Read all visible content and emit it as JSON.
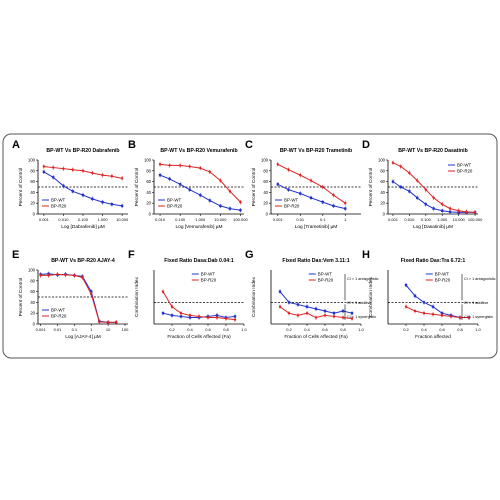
{
  "colors": {
    "wt": "#2233cc",
    "r20": "#dd2222",
    "ref": "#000000"
  },
  "ci_labels": {
    "antagonistic": "CI > 1 antagonistic",
    "additive": "CI = 1 additive",
    "synergistic": "CI < 1 synergistic"
  },
  "chart_data": [
    {
      "panel": "A",
      "type": "scatter",
      "title": "BP-WT Vs BP-R20 Dabrafenib",
      "xlabel": "Log [Dabrafenib] µM",
      "ylabel": "Percent of Control",
      "xscale": "log",
      "xlim": [
        0.0005,
        20
      ],
      "ylim": [
        0,
        100
      ],
      "xticks": [
        0.001,
        0.01,
        0.1,
        1,
        10
      ],
      "xticklabels": [
        "0.001",
        "0.010",
        "0.100",
        "1.000",
        "10.000"
      ],
      "yticks": [
        0,
        20,
        40,
        60,
        80,
        100
      ],
      "refline": 50,
      "legend": "bottom-left",
      "series": [
        {
          "name": "BP-WT",
          "x": [
            0.001,
            0.003,
            0.01,
            0.03,
            0.1,
            0.3,
            1,
            3,
            10
          ],
          "y": [
            78,
            68,
            52,
            42,
            35,
            28,
            22,
            18,
            15
          ]
        },
        {
          "name": "BP-R20",
          "x": [
            0.001,
            0.003,
            0.01,
            0.03,
            0.1,
            0.3,
            1,
            3,
            10
          ],
          "y": [
            88,
            86,
            84,
            82,
            80,
            76,
            72,
            70,
            66
          ]
        }
      ]
    },
    {
      "panel": "B",
      "type": "scatter",
      "title": "BP-WT Vs BP-R20 Vemurafenib",
      "xlabel": "Log [Vemurafenib] µM",
      "ylabel": "Percent of Control",
      "xscale": "log",
      "xlim": [
        0.005,
        150
      ],
      "ylim": [
        0,
        100
      ],
      "xticks": [
        0.01,
        0.1,
        1,
        10,
        100
      ],
      "xticklabels": [
        "0.010",
        "0.100",
        "1.000",
        "10.000",
        "100.000"
      ],
      "yticks": [
        0,
        20,
        40,
        60,
        80,
        100
      ],
      "refline": 50,
      "legend": "bottom-left",
      "series": [
        {
          "name": "BP-WT",
          "x": [
            0.01,
            0.03,
            0.1,
            0.3,
            1,
            3,
            10,
            30,
            100
          ],
          "y": [
            72,
            65,
            55,
            45,
            35,
            25,
            15,
            10,
            7
          ]
        },
        {
          "name": "BP-R20",
          "x": [
            0.01,
            0.03,
            0.1,
            0.3,
            1,
            3,
            10,
            30,
            100
          ],
          "y": [
            92,
            90,
            90,
            88,
            85,
            78,
            62,
            42,
            22
          ]
        }
      ]
    },
    {
      "panel": "C",
      "type": "scatter",
      "title": "BP-WT Vs BP-R20 Trametinib",
      "xlabel": "Log [Trametinib] µM",
      "ylabel": "Percent of Control",
      "xscale": "log",
      "xlim": [
        0.0005,
        5
      ],
      "ylim": [
        0,
        100
      ],
      "xticks": [
        0.001,
        0.01,
        0.1,
        1
      ],
      "xticklabels": [
        "0.001",
        "0.01",
        "0.1",
        "1"
      ],
      "yticks": [
        0,
        20,
        40,
        60,
        80,
        100
      ],
      "refline": 50,
      "legend": "bottom-left",
      "series": [
        {
          "name": "BP-WT",
          "x": [
            0.001,
            0.003,
            0.01,
            0.03,
            0.1,
            0.3,
            1
          ],
          "y": [
            55,
            45,
            38,
            30,
            22,
            15,
            10
          ]
        },
        {
          "name": "BP-R20",
          "x": [
            0.001,
            0.003,
            0.01,
            0.03,
            0.1,
            0.3,
            1
          ],
          "y": [
            92,
            82,
            72,
            62,
            50,
            35,
            20
          ]
        }
      ]
    },
    {
      "panel": "D",
      "type": "scatter",
      "title": "BP-WT Vs BP-R20 Dasatinib",
      "xlabel": "Log [Dasatinib] µM",
      "ylabel": "Percent of Control",
      "xscale": "log",
      "xlim": [
        0.0005,
        150
      ],
      "ylim": [
        0,
        100
      ],
      "xticks": [
        0.001,
        0.01,
        0.1,
        1,
        10,
        100
      ],
      "xticklabels": [
        "0.001",
        "0.010",
        "0.100",
        "1.000",
        "10.000",
        "100.000"
      ],
      "yticks": [
        0,
        20,
        40,
        60,
        80,
        100
      ],
      "refline": 50,
      "legend": "top-right",
      "series": [
        {
          "name": "BP-WT",
          "x": [
            0.001,
            0.003,
            0.01,
            0.03,
            0.1,
            0.3,
            1,
            3,
            10,
            30,
            100
          ],
          "y": [
            60,
            50,
            42,
            30,
            18,
            10,
            6,
            4,
            3,
            3,
            3
          ]
        },
        {
          "name": "BP-R20",
          "x": [
            0.001,
            0.003,
            0.01,
            0.03,
            0.1,
            0.3,
            1,
            3,
            10,
            30,
            100
          ],
          "y": [
            95,
            88,
            76,
            62,
            45,
            30,
            18,
            10,
            6,
            4,
            3
          ]
        }
      ]
    },
    {
      "panel": "E",
      "type": "scatter",
      "title": "BP-WT Vs BP-R20 AJAY-4",
      "xlabel": "Log [AJAY-4] µM",
      "ylabel": "Percent of Control",
      "xscale": "log",
      "xlim": [
        0.0007,
        150
      ],
      "ylim": [
        0,
        100
      ],
      "xticks": [
        0.001,
        0.01,
        0.1,
        1,
        10,
        100
      ],
      "xticklabels": [
        "0.001",
        "0.01",
        "0.1",
        "1",
        "10",
        "100"
      ],
      "yticks": [
        0,
        20,
        40,
        60,
        80,
        100
      ],
      "refline": 50,
      "legend": "bottom-left",
      "series": [
        {
          "name": "BP-WT",
          "x": [
            0.001,
            0.003,
            0.01,
            0.03,
            0.1,
            0.3,
            1,
            3,
            10,
            30
          ],
          "y": [
            92,
            93,
            91,
            92,
            90,
            88,
            60,
            5,
            3,
            3
          ]
        },
        {
          "name": "BP-R20",
          "x": [
            0.001,
            0.003,
            0.01,
            0.03,
            0.1,
            0.3,
            1,
            3,
            10,
            30
          ],
          "y": [
            90,
            90,
            92,
            91,
            90,
            86,
            55,
            4,
            3,
            3
          ]
        }
      ]
    },
    {
      "panel": "F",
      "type": "scatter",
      "title": "Fixed Ratio Dasa:Dab 0.04:1",
      "xlabel": "Fraction of Cells Affected (Fa)",
      "ylabel": "Combination Index",
      "xlim": [
        0,
        1
      ],
      "ylim": [
        0,
        2.5
      ],
      "xticks": [
        0.2,
        0.4,
        0.6,
        0.8,
        1.0
      ],
      "xticklabels": [
        "0.2",
        "0.4",
        "0.6",
        "0.8",
        "1.0"
      ],
      "refline": 1,
      "legend": "top-right",
      "series": [
        {
          "name": "BP-WT",
          "x": [
            0.1,
            0.2,
            0.3,
            0.4,
            0.5,
            0.6,
            0.7,
            0.8,
            0.9
          ],
          "y": [
            0.5,
            0.4,
            0.35,
            0.3,
            0.3,
            0.35,
            0.4,
            0.3,
            0.35
          ]
        },
        {
          "name": "BP-R20",
          "x": [
            0.1,
            0.2,
            0.3,
            0.4,
            0.5,
            0.6,
            0.7,
            0.8,
            0.9
          ],
          "y": [
            1.5,
            0.8,
            0.5,
            0.4,
            0.35,
            0.3,
            0.3,
            0.25,
            0.2
          ]
        }
      ]
    },
    {
      "panel": "G",
      "type": "scatter",
      "title": "Fixed Ratio Das:Vem 3.11:1",
      "xlabel": "Fraction of Cells Affected (Fa)",
      "ylabel": "Combination Index",
      "xlim": [
        0,
        1
      ],
      "ylim": [
        0,
        2.5
      ],
      "xticks": [
        0.2,
        0.4,
        0.6,
        0.8,
        1.0
      ],
      "xticklabels": [
        "0.2",
        "0.4",
        "0.6",
        "0.8",
        "1.0"
      ],
      "refline": 1,
      "legend": "top-right",
      "series": [
        {
          "name": "BP-WT",
          "x": [
            0.1,
            0.2,
            0.3,
            0.4,
            0.5,
            0.6,
            0.7,
            0.8,
            0.9
          ],
          "y": [
            1.5,
            1.0,
            0.9,
            0.8,
            0.7,
            0.6,
            0.5,
            0.6,
            0.5
          ]
        },
        {
          "name": "BP-R20",
          "x": [
            0.1,
            0.2,
            0.3,
            0.4,
            0.5,
            0.6,
            0.7,
            0.8,
            0.9
          ],
          "y": [
            0.8,
            0.5,
            0.4,
            0.5,
            0.3,
            0.4,
            0.35,
            0.3,
            0.25
          ]
        }
      ]
    },
    {
      "panel": "H",
      "type": "scatter",
      "title": "Fixed Ratio Das:Tra 6.72:1",
      "xlabel": "Fraction affected",
      "ylabel": "Combination Index",
      "xlim": [
        0,
        1
      ],
      "ylim": [
        0,
        2.5
      ],
      "xticks": [
        0.2,
        0.4,
        0.6,
        0.8,
        1.0
      ],
      "xticklabels": [
        "0.2",
        "0.4",
        "0.6",
        "0.8",
        "1.0"
      ],
      "refline": 1,
      "legend": "top-right",
      "series": [
        {
          "name": "BP-WT",
          "x": [
            0.2,
            0.3,
            0.4,
            0.5,
            0.6,
            0.7,
            0.8,
            0.9
          ],
          "y": [
            1.8,
            1.3,
            1.0,
            0.8,
            0.5,
            0.4,
            0.3,
            0.3
          ]
        },
        {
          "name": "BP-R20",
          "x": [
            0.2,
            0.3,
            0.4,
            0.5,
            0.6,
            0.7,
            0.8,
            0.9
          ],
          "y": [
            0.8,
            0.6,
            0.5,
            0.45,
            0.4,
            0.35,
            0.3,
            0.3
          ]
        }
      ]
    }
  ]
}
